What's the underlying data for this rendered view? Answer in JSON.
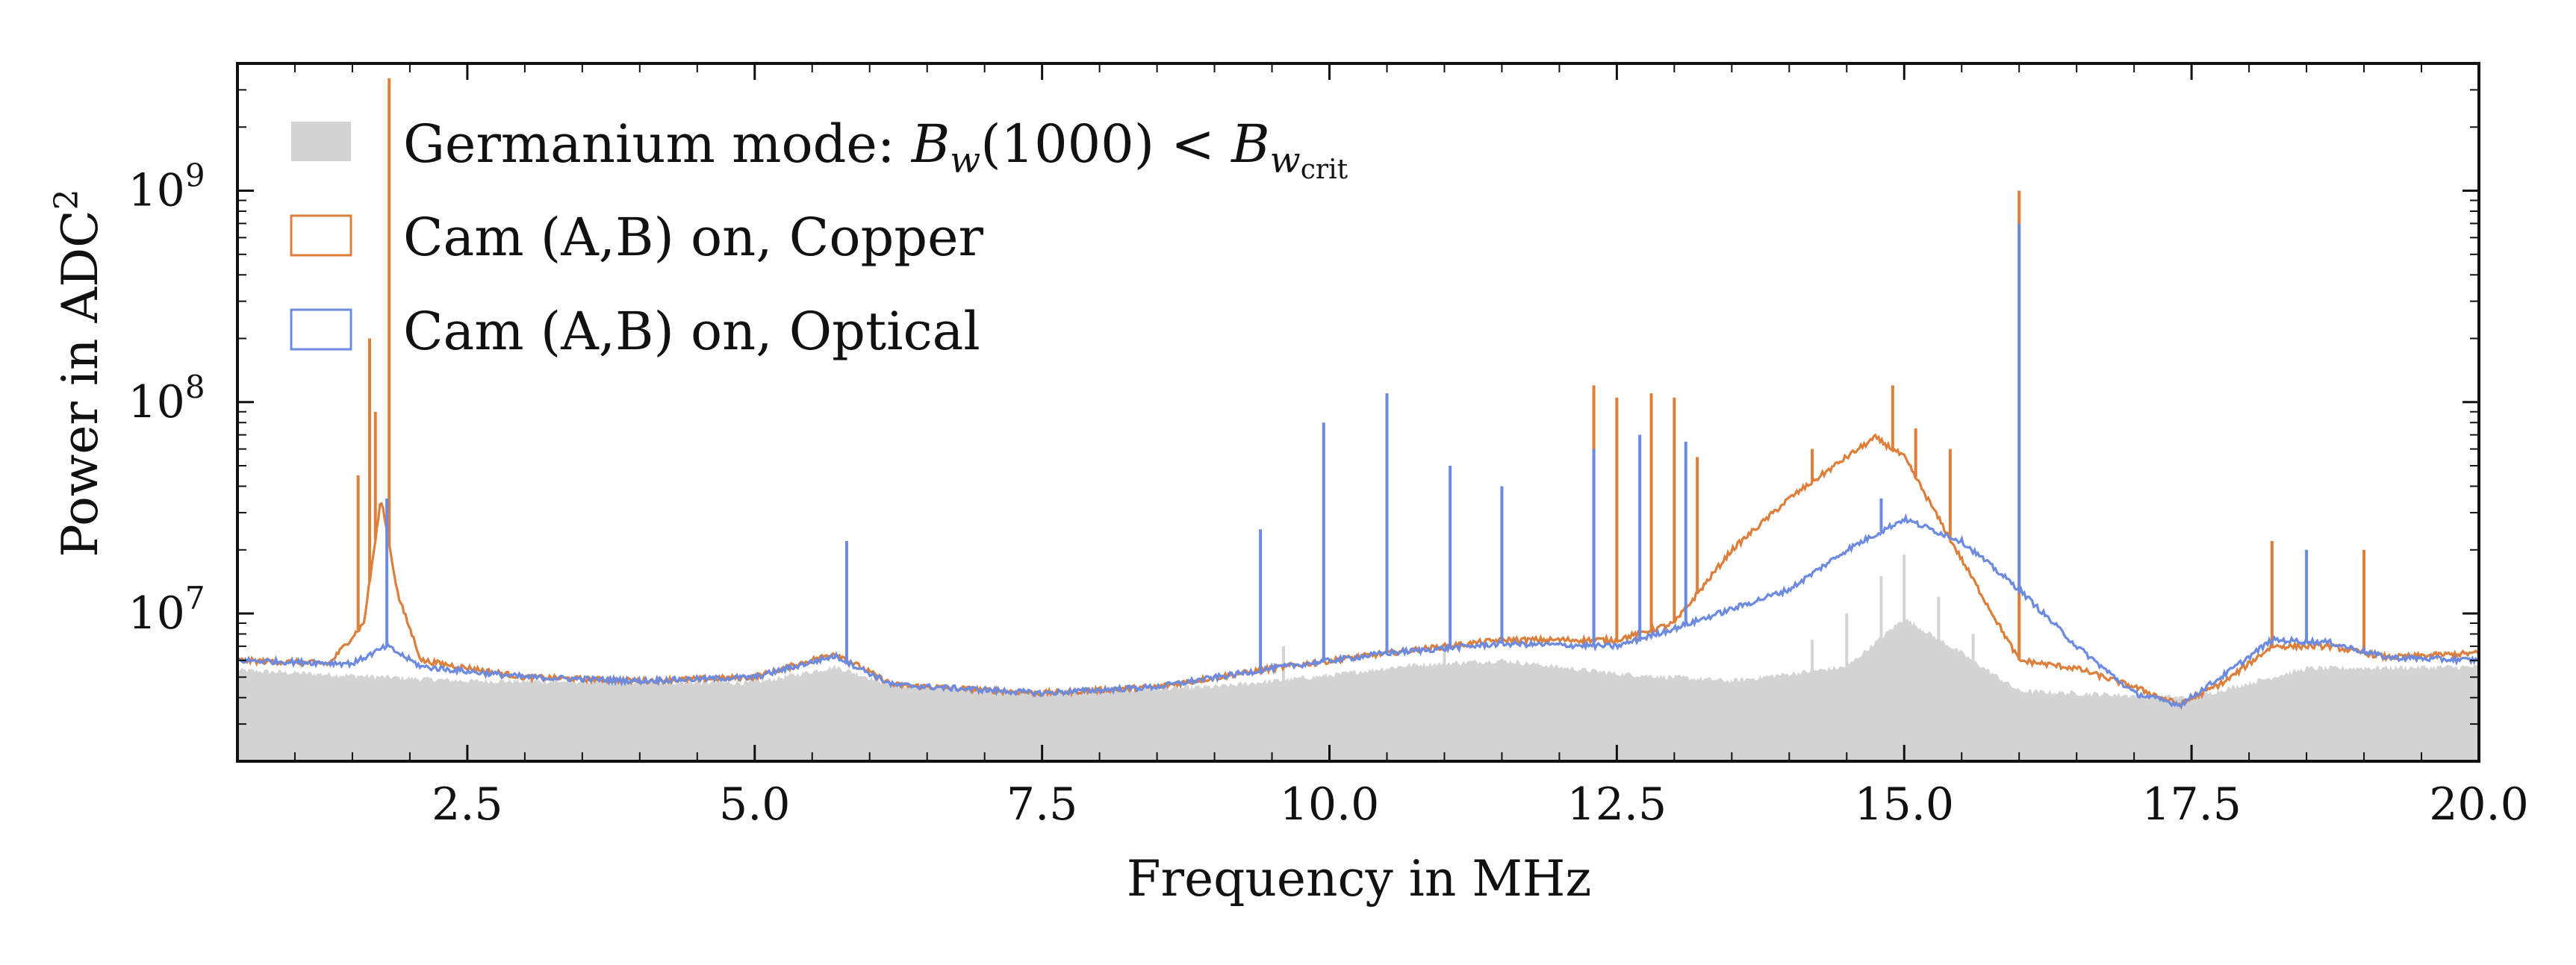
{
  "chart_data": {
    "type": "area",
    "xlabel": "Frequency in MHz",
    "ylabel": "Power in ADC",
    "ylabel_superscript": "2",
    "y_scale": "log",
    "xlim": [
      0.5,
      20.0
    ],
    "ylim": [
      2000000,
      4000000000
    ],
    "xticks": [
      2.5,
      5.0,
      7.5,
      10.0,
      12.5,
      15.0,
      17.5,
      20.0
    ],
    "xtick_labels": [
      "2.5",
      "5.0",
      "7.5",
      "10.0",
      "12.5",
      "15.0",
      "17.5",
      "20.0"
    ],
    "yticks": [
      10000000,
      100000000,
      1000000000
    ],
    "ytick_labels": [
      {
        "base": "10",
        "exp": "7"
      },
      {
        "base": "10",
        "exp": "8"
      },
      {
        "base": "10",
        "exp": "9"
      }
    ],
    "grid": false,
    "legend_position": "top-left",
    "series": [
      {
        "name": "Germanium mode: B_w(1000) < B_w_crit",
        "legend_parts": {
          "prefix": "Germanium mode:  ",
          "math": "B",
          "sub_w": "w",
          "paren": "(1000) < ",
          "math2": "B",
          "sub2": "w",
          "subsub": "crit"
        },
        "color": "#d3d3d3",
        "style": "filled",
        "baseline": [
          [
            0.5,
            5400000
          ],
          [
            2.5,
            4800000
          ],
          [
            5.0,
            4700000
          ],
          [
            5.7,
            5600000
          ],
          [
            6.2,
            4600000
          ],
          [
            7.5,
            4250000
          ],
          [
            9.0,
            4500000
          ],
          [
            10.0,
            5100000
          ],
          [
            10.7,
            5700000
          ],
          [
            11.5,
            6000000
          ],
          [
            12.5,
            5200000
          ],
          [
            13.5,
            4800000
          ],
          [
            14.5,
            5600000
          ],
          [
            15.0,
            9500000
          ],
          [
            15.5,
            6500000
          ],
          [
            16.0,
            4300000
          ],
          [
            17.5,
            4000000
          ],
          [
            18.5,
            5500000
          ],
          [
            20.0,
            5600000
          ]
        ],
        "spikes": [
          [
            14.2,
            7500000
          ],
          [
            14.5,
            10000000
          ],
          [
            14.8,
            15000000
          ],
          [
            15.0,
            19000000
          ],
          [
            15.3,
            12000000
          ],
          [
            15.6,
            8000000
          ],
          [
            9.6,
            7000000
          ],
          [
            11.0,
            7000000
          ]
        ]
      },
      {
        "name": "Cam (A,B) on, Copper",
        "color": "#dd7e3b",
        "style": "line",
        "baseline": [
          [
            0.5,
            6000000
          ],
          [
            1.3,
            5800000
          ],
          [
            1.6,
            9000000
          ],
          [
            1.75,
            35000000
          ],
          [
            1.9,
            12000000
          ],
          [
            2.1,
            6000000
          ],
          [
            3.0,
            5000000
          ],
          [
            4.0,
            4800000
          ],
          [
            5.0,
            5000000
          ],
          [
            5.7,
            6500000
          ],
          [
            6.2,
            4600000
          ],
          [
            7.5,
            4200000
          ],
          [
            8.5,
            4500000
          ],
          [
            9.5,
            5500000
          ],
          [
            10.5,
            6500000
          ],
          [
            11.5,
            7500000
          ],
          [
            12.5,
            7500000
          ],
          [
            13.0,
            9000000
          ],
          [
            13.5,
            20000000
          ],
          [
            14.0,
            35000000
          ],
          [
            14.5,
            55000000
          ],
          [
            14.75,
            68000000
          ],
          [
            15.0,
            55000000
          ],
          [
            15.5,
            18000000
          ],
          [
            16.0,
            6000000
          ],
          [
            16.5,
            5500000
          ],
          [
            17.0,
            4500000
          ],
          [
            17.4,
            3700000
          ],
          [
            17.8,
            4800000
          ],
          [
            18.2,
            7000000
          ],
          [
            18.7,
            7000000
          ],
          [
            19.2,
            6200000
          ],
          [
            20.0,
            6500000
          ]
        ],
        "spikes": [
          [
            1.65,
            200000000
          ],
          [
            1.82,
            3400000000
          ],
          [
            1.7,
            90000000
          ],
          [
            1.55,
            45000000
          ],
          [
            12.3,
            120000000
          ],
          [
            12.5,
            105000000
          ],
          [
            12.8,
            110000000
          ],
          [
            13.0,
            105000000
          ],
          [
            13.2,
            55000000
          ],
          [
            14.2,
            60000000
          ],
          [
            14.9,
            120000000
          ],
          [
            15.1,
            75000000
          ],
          [
            15.4,
            60000000
          ],
          [
            16.0,
            1000000000
          ],
          [
            18.2,
            22000000
          ],
          [
            19.0,
            20000000
          ]
        ]
      },
      {
        "name": "Cam (A,B) on, Optical",
        "color": "#6b8ae0",
        "style": "line",
        "baseline": [
          [
            0.5,
            6000000
          ],
          [
            1.5,
            5800000
          ],
          [
            1.8,
            7000000
          ],
          [
            2.1,
            5600000
          ],
          [
            3.0,
            5000000
          ],
          [
            4.0,
            4800000
          ],
          [
            5.0,
            5000000
          ],
          [
            5.7,
            6300000
          ],
          [
            6.2,
            4600000
          ],
          [
            7.5,
            4200000
          ],
          [
            8.5,
            4500000
          ],
          [
            9.5,
            5500000
          ],
          [
            10.5,
            6500000
          ],
          [
            11.5,
            7200000
          ],
          [
            12.5,
            7000000
          ],
          [
            13.0,
            8500000
          ],
          [
            13.5,
            10500000
          ],
          [
            14.0,
            13000000
          ],
          [
            14.5,
            20000000
          ],
          [
            15.0,
            28000000
          ],
          [
            15.5,
            22000000
          ],
          [
            16.0,
            13000000
          ],
          [
            16.5,
            7000000
          ],
          [
            17.0,
            4200000
          ],
          [
            17.4,
            3700000
          ],
          [
            17.8,
            5200000
          ],
          [
            18.2,
            7500000
          ],
          [
            18.7,
            7300000
          ],
          [
            19.2,
            6200000
          ],
          [
            20.0,
            6000000
          ]
        ],
        "spikes": [
          [
            1.8,
            35000000
          ],
          [
            5.8,
            22000000
          ],
          [
            9.4,
            25000000
          ],
          [
            9.95,
            80000000
          ],
          [
            10.5,
            110000000
          ],
          [
            11.05,
            50000000
          ],
          [
            11.5,
            40000000
          ],
          [
            12.3,
            60000000
          ],
          [
            12.7,
            70000000
          ],
          [
            13.1,
            65000000
          ],
          [
            14.8,
            35000000
          ],
          [
            16.0,
            700000000
          ],
          [
            18.5,
            20000000
          ]
        ]
      }
    ]
  }
}
